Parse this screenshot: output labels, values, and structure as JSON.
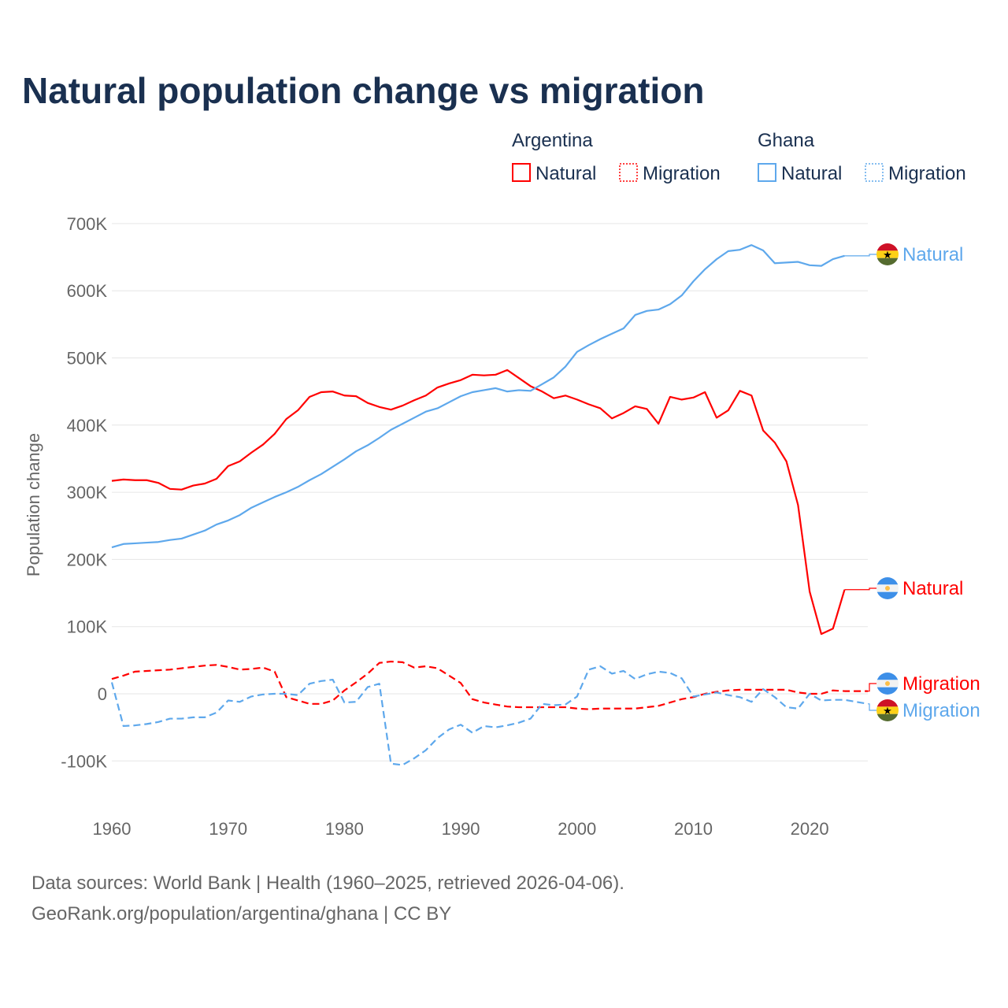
{
  "title": "Natural population change vs migration",
  "source_line1": "Data sources: World Bank | Health (1960–2025, retrieved 2026-04-06).",
  "source_line2": "GeoRank.org/population/argentina/ghana | CC BY",
  "colors": {
    "argentina": "#ff0000",
    "ghana": "#5ea8ec",
    "grid": "#e6e6e6",
    "text": "#1a3050",
    "axis_text": "#666666"
  },
  "chart_data": {
    "type": "line",
    "title": "Natural population change vs migration",
    "ylabel": "Population change",
    "xlabel": "",
    "ylim": [
      -150000,
      720000
    ],
    "xlim": [
      1960,
      2025
    ],
    "yticks": [
      -100000,
      0,
      100000,
      200000,
      300000,
      400000,
      500000,
      600000,
      700000
    ],
    "ytick_labels": [
      "-100K",
      "0",
      "100K",
      "200K",
      "300K",
      "400K",
      "500K",
      "600K",
      "700K"
    ],
    "xticks": [
      1960,
      1970,
      1980,
      1990,
      2000,
      2010,
      2020
    ],
    "xtick_labels": [
      "1960",
      "1970",
      "1980",
      "1990",
      "2000",
      "2010",
      "2020"
    ],
    "grid": true,
    "legend": {
      "placement": "top-right",
      "groups": [
        {
          "name": "Argentina",
          "items": [
            "Natural",
            "Migration"
          ]
        },
        {
          "name": "Ghana",
          "items": [
            "Natural",
            "Migration"
          ]
        }
      ]
    },
    "series": [
      {
        "name": "Natural",
        "country": "Argentina",
        "color": "#ff0000",
        "dash": "solid",
        "start": 1960,
        "values_k": [
          317,
          319,
          318,
          318,
          314,
          305,
          304,
          310,
          313,
          320,
          339,
          346,
          359,
          371,
          387,
          409,
          422,
          442,
          449,
          450,
          444,
          443,
          433,
          427,
          423,
          429,
          437,
          444,
          456,
          462,
          467,
          475,
          474,
          475,
          482,
          470,
          458,
          450,
          440,
          444,
          438,
          431,
          425,
          410,
          418,
          428,
          424,
          402,
          442,
          438,
          441,
          449,
          411,
          422,
          451,
          444,
          392,
          374,
          346,
          281,
          152,
          89,
          97,
          155
        ]
      },
      {
        "name": "Migration",
        "country": "Argentina",
        "color": "#ff0000",
        "dash": "dashed",
        "start": 1960,
        "values_k": [
          22,
          27,
          33,
          34,
          35,
          36,
          38,
          40,
          42,
          43,
          40,
          36,
          37,
          39,
          33,
          -5,
          -10,
          -15,
          -15,
          -10,
          5,
          17,
          30,
          46,
          48,
          47,
          39,
          41,
          38,
          27,
          16,
          -8,
          -13,
          -16,
          -19,
          -20,
          -20,
          -20,
          -20,
          -20,
          -22,
          -23,
          -22,
          -22,
          -22,
          -22,
          -20,
          -18,
          -13,
          -8,
          -5,
          0,
          3,
          5,
          6,
          6,
          6,
          6,
          6,
          2,
          0,
          0,
          5,
          4,
          4,
          4
        ]
      },
      {
        "name": "Natural",
        "country": "Ghana",
        "color": "#5ea8ec",
        "dash": "solid",
        "start": 1960,
        "values_k": [
          218,
          223,
          224,
          225,
          226,
          229,
          231,
          237,
          243,
          252,
          258,
          266,
          277,
          285,
          293,
          300,
          308,
          318,
          327,
          338,
          349,
          361,
          370,
          381,
          393,
          402,
          411,
          420,
          425,
          434,
          443,
          449,
          452,
          455,
          450,
          452,
          451,
          461,
          471,
          487,
          509,
          519,
          528,
          536,
          544,
          564,
          570,
          572,
          580,
          593,
          614,
          632,
          647,
          659,
          661,
          668,
          660,
          641,
          642,
          643,
          638,
          637,
          647,
          652
        ]
      },
      {
        "name": "Migration",
        "country": "Ghana",
        "color": "#5ea8ec",
        "dash": "dashed",
        "start": 1960,
        "values_k": [
          17,
          -48,
          -47,
          -45,
          -42,
          -37,
          -37,
          -35,
          -35,
          -28,
          -10,
          -12,
          -4,
          -1,
          0,
          0,
          -2,
          15,
          19,
          21,
          -13,
          -12,
          10,
          15,
          -104,
          -106,
          -96,
          -84,
          -66,
          -53,
          -46,
          -58,
          -48,
          -50,
          -47,
          -43,
          -37,
          -15,
          -17,
          -16,
          -4,
          36,
          41,
          30,
          34,
          22,
          29,
          33,
          31,
          23,
          -4,
          -1,
          2,
          -2,
          -5,
          -12,
          7,
          -5,
          -20,
          -22,
          0,
          -10,
          -9,
          -9,
          -12,
          -15
        ]
      }
    ],
    "end_labels": [
      {
        "text": "Natural",
        "country": "Ghana"
      },
      {
        "text": "Natural",
        "country": "Argentina"
      },
      {
        "text": "Migration",
        "country": "Argentina"
      },
      {
        "text": "Migration",
        "country": "Ghana"
      }
    ]
  }
}
